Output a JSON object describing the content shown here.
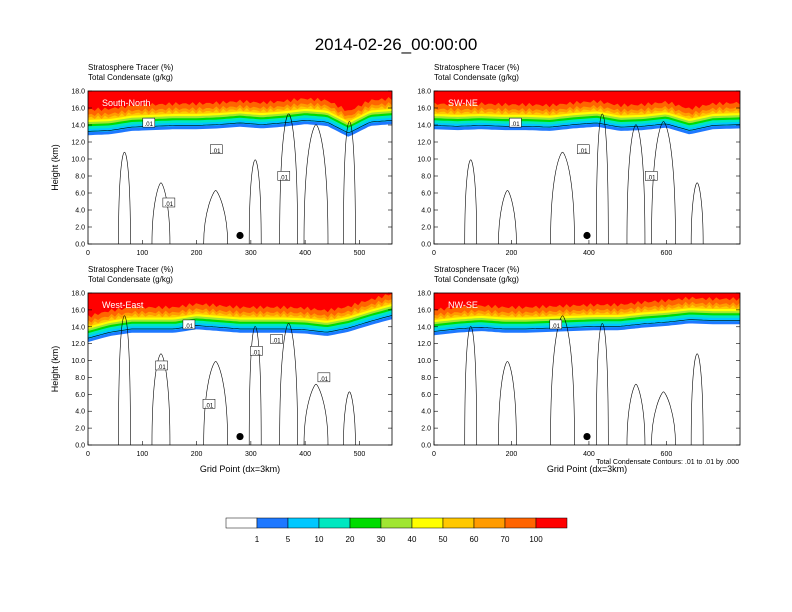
{
  "figure": {
    "title": "2014-02-26_00:00:00",
    "footnote": "Total Condensate Contours: .01 to .01 by .000"
  },
  "colorbar": {
    "colors": [
      "#ffffff",
      "#1e78ff",
      "#00c8ff",
      "#00e8c0",
      "#00dc00",
      "#a0e632",
      "#ffff00",
      "#ffc800",
      "#ff9b00",
      "#ff6400",
      "#ff0000"
    ],
    "labels": [
      "1",
      "5",
      "10",
      "20",
      "30",
      "40",
      "50",
      "60",
      "70",
      "100"
    ]
  },
  "chart_data": [
    {
      "type": "heatmap",
      "panel_label": "South-North",
      "title_line1": "Stratosphere Tracer   (%)",
      "title_line2": "Total Condensate   (g/kg)",
      "ylabel": "Height (km)",
      "xlabel": "",
      "xlim": [
        0,
        560
      ],
      "ylim": [
        0,
        18
      ],
      "xticks": [
        "0",
        "100",
        "200",
        "300",
        "400",
        "500"
      ],
      "yticks": [
        "0.0",
        "2.0",
        "4.0",
        "6.0",
        "8.0",
        "10.0",
        "12.0",
        "14.0",
        "16.0",
        "18.0"
      ],
      "tropopause_x": [
        0,
        40,
        80,
        120,
        160,
        200,
        240,
        280,
        320,
        360,
        400,
        440,
        480,
        520,
        560
      ],
      "tropopause_km": [
        12.8,
        12.9,
        13.3,
        13.4,
        13.5,
        13.5,
        13.6,
        13.8,
        13.6,
        13.8,
        14.1,
        13.9,
        12.6,
        13.9,
        14.1
      ],
      "contour_labels": [
        ".01",
        ".01",
        ".01",
        ".01"
      ],
      "marker": {
        "x": 280,
        "z": 1.0
      }
    },
    {
      "type": "heatmap",
      "panel_label": "SW-NE",
      "title_line1": "Stratosphere Tracer   (%)",
      "title_line2": "Total Condensate   (g/kg)",
      "ylabel": "",
      "xlabel": "",
      "xlim": [
        0,
        790
      ],
      "ylim": [
        0,
        18
      ],
      "xticks": [
        "0",
        "200",
        "400",
        "600"
      ],
      "yticks": [
        "0.0",
        "2.0",
        "4.0",
        "6.0",
        "8.0",
        "10.0",
        "12.0",
        "14.0",
        "16.0",
        "18.0"
      ],
      "tropopause_x": [
        0,
        60,
        120,
        180,
        240,
        300,
        360,
        420,
        480,
        540,
        600,
        660,
        720,
        790
      ],
      "tropopause_km": [
        13.5,
        13.4,
        13.5,
        13.4,
        13.4,
        13.3,
        13.6,
        13.8,
        13.3,
        13.4,
        13.7,
        12.9,
        13.5,
        13.6
      ],
      "contour_labels": [
        ".01",
        ".01",
        ".01"
      ],
      "marker": {
        "x": 395,
        "z": 1.0
      }
    },
    {
      "type": "heatmap",
      "panel_label": "West-East",
      "title_line1": "Stratosphere Tracer   (%)",
      "title_line2": "Total Condensate   (g/kg)",
      "ylabel": "Height (km)",
      "xlabel": "Grid Point (dx=3km)",
      "xlim": [
        0,
        560
      ],
      "ylim": [
        0,
        18
      ],
      "xticks": [
        "0",
        "100",
        "200",
        "300",
        "400",
        "500"
      ],
      "yticks": [
        "0.0",
        "2.0",
        "4.0",
        "6.0",
        "8.0",
        "10.0",
        "12.0",
        "14.0",
        "16.0",
        "18.0"
      ],
      "tropopause_x": [
        0,
        40,
        80,
        120,
        160,
        200,
        240,
        280,
        320,
        360,
        400,
        440,
        480,
        520,
        560
      ],
      "tropopause_km": [
        12.2,
        12.9,
        13.3,
        13.3,
        13.3,
        13.7,
        13.5,
        13.3,
        13.3,
        13.3,
        13.2,
        12.9,
        13.4,
        14.2,
        14.9
      ],
      "contour_labels": [
        ".01",
        ".01",
        ".01",
        ".01",
        ".01",
        ".01"
      ],
      "marker": {
        "x": 280,
        "z": 1.0
      }
    },
    {
      "type": "heatmap",
      "panel_label": "NW-SE",
      "title_line1": "Stratosphere Tracer   (%)",
      "title_line2": "Total Condensate   (g/kg)",
      "ylabel": "",
      "xlabel": "Grid Point (dx=3km)",
      "xlim": [
        0,
        790
      ],
      "ylim": [
        0,
        18
      ],
      "xticks": [
        "0",
        "200",
        "400",
        "600"
      ],
      "yticks": [
        "0.0",
        "2.0",
        "4.0",
        "6.0",
        "8.0",
        "10.0",
        "12.0",
        "14.0",
        "16.0",
        "18.0"
      ],
      "tropopause_x": [
        0,
        60,
        120,
        180,
        240,
        300,
        360,
        420,
        480,
        540,
        600,
        660,
        720,
        790
      ],
      "tropopause_km": [
        13.0,
        13.3,
        13.5,
        13.3,
        13.3,
        13.4,
        13.5,
        13.6,
        13.6,
        13.9,
        14.1,
        14.4,
        14.3,
        14.3
      ],
      "contour_labels": [
        ".01"
      ],
      "marker": {
        "x": 395,
        "z": 1.0
      }
    }
  ]
}
